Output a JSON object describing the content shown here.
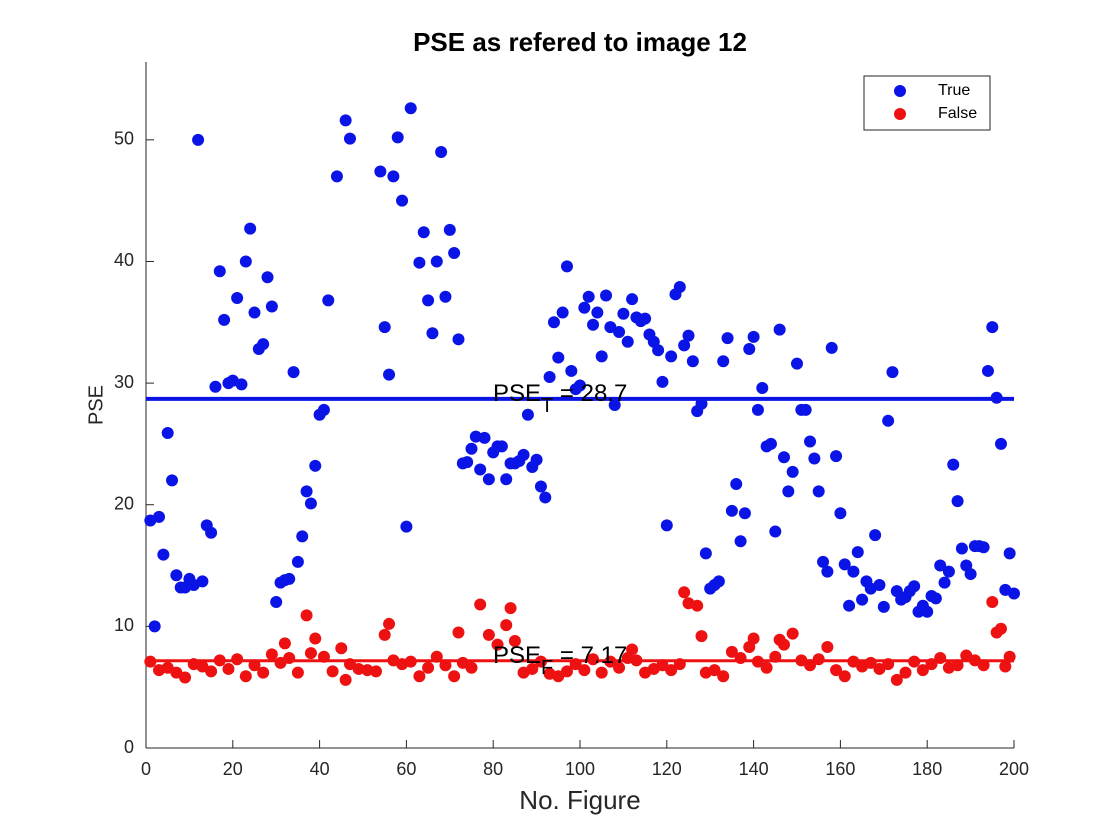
{
  "chart_data": {
    "type": "scatter",
    "title": "PSE as refered to image 12",
    "x_label": "No. Figure",
    "y_label": "PSE",
    "xlim": [
      0,
      200
    ],
    "xticks": [
      0,
      20,
      40,
      60,
      80,
      100,
      120,
      140,
      160,
      180,
      200
    ],
    "ylim": [
      0,
      56.4
    ],
    "yticks": [
      0,
      10,
      20,
      30,
      40,
      50
    ],
    "legend": "northeast",
    "series": [
      {
        "name": "True",
        "color": "#0a14e6",
        "x": [
          1,
          2,
          3,
          4,
          5,
          6,
          7,
          8,
          9,
          10,
          11,
          12,
          13,
          14,
          15,
          16,
          17,
          18,
          19,
          20,
          21,
          22,
          23,
          24,
          25,
          26,
          27,
          28,
          29,
          30,
          31,
          32,
          33,
          34,
          35,
          36,
          37,
          38,
          39,
          40,
          41,
          42,
          44,
          46,
          47,
          54,
          55,
          56,
          57,
          58,
          59,
          60,
          61,
          63,
          64,
          65,
          66,
          67,
          68,
          69,
          70,
          71,
          72,
          73,
          74,
          75,
          76,
          77,
          78,
          79,
          80,
          81,
          82,
          83,
          84,
          85,
          86,
          87,
          88,
          89,
          90,
          91,
          92,
          93,
          94,
          95,
          96,
          97,
          98,
          99,
          100,
          101,
          102,
          103,
          104,
          105,
          106,
          107,
          108,
          109,
          110,
          111,
          112,
          113,
          114,
          115,
          116,
          117,
          118,
          119,
          120,
          121,
          122,
          123,
          124,
          125,
          126,
          127,
          128,
          129,
          130,
          131,
          132,
          133,
          134,
          135,
          136,
          137,
          138,
          139,
          140,
          141,
          142,
          143,
          144,
          145,
          146,
          147,
          148,
          149,
          150,
          151,
          152,
          153,
          154,
          155,
          156,
          157,
          158,
          159,
          160,
          161,
          162,
          163,
          164,
          165,
          166,
          167,
          168,
          169,
          170,
          171,
          172,
          173,
          174,
          175,
          176,
          177,
          178,
          179,
          180,
          181,
          182,
          183,
          184,
          185,
          186,
          187,
          188,
          189,
          190,
          191,
          192,
          193,
          194,
          195,
          196,
          197,
          198,
          199,
          200
        ],
        "values": [
          18.7,
          10.0,
          19.0,
          15.9,
          25.9,
          22.0,
          14.2,
          13.2,
          13.2,
          13.9,
          13.4,
          50.0,
          13.7,
          18.3,
          17.7,
          29.7,
          39.2,
          35.2,
          30.0,
          30.2,
          37.0,
          29.9,
          40.0,
          42.7,
          35.8,
          32.8,
          33.2,
          38.7,
          36.3,
          12.0,
          13.6,
          13.8,
          13.9,
          30.9,
          15.3,
          17.4,
          21.1,
          20.1,
          23.2,
          27.4,
          27.8,
          36.8,
          47.0,
          51.6,
          50.1,
          47.4,
          34.6,
          30.7,
          47.0,
          50.2,
          45.0,
          18.2,
          52.6,
          39.9,
          42.4,
          36.8,
          34.1,
          40.0,
          49.0,
          37.1,
          42.6,
          40.7,
          33.6,
          23.4,
          23.5,
          24.6,
          25.6,
          22.9,
          25.5,
          22.1,
          24.3,
          24.8,
          24.8,
          22.1,
          23.4,
          23.4,
          23.6,
          24.1,
          27.4,
          23.1,
          23.7,
          21.5,
          20.6,
          30.5,
          35.0,
          32.1,
          35.8,
          39.6,
          31.0,
          29.5,
          29.8,
          36.2,
          37.1,
          34.8,
          35.8,
          32.2,
          37.2,
          34.6,
          28.2,
          34.2,
          35.7,
          33.4,
          36.9,
          35.4,
          35.1,
          35.3,
          34.0,
          33.4,
          32.7,
          30.1,
          18.3,
          32.2,
          37.3,
          37.9,
          33.1,
          33.9,
          31.8,
          27.7,
          28.3,
          16.0,
          13.1,
          13.4,
          13.7,
          31.8,
          33.7,
          19.5,
          21.7,
          17.0,
          19.3,
          32.8,
          33.8,
          27.8,
          29.6,
          24.8,
          25.0,
          17.8,
          34.4,
          23.9,
          21.1,
          22.7,
          31.6,
          27.8,
          27.8,
          25.2,
          23.8,
          21.1,
          15.3,
          14.5,
          32.9,
          24.0,
          19.3,
          15.1,
          11.7,
          14.5,
          16.1,
          12.2,
          13.7,
          13.1,
          17.5,
          13.4,
          11.6,
          26.9,
          30.9,
          12.9,
          12.2,
          12.4,
          12.9,
          13.3,
          11.2,
          11.7,
          11.2,
          12.5,
          12.3,
          15.0,
          13.6,
          14.5,
          23.3,
          20.3,
          16.4,
          15.0,
          14.3,
          16.6,
          16.6,
          16.5,
          31.0,
          34.6,
          28.8,
          25.0,
          13.0,
          16.0,
          12.7
        ]
      },
      {
        "name": "False",
        "color": "#ee1111",
        "x": [
          1,
          3,
          5,
          7,
          9,
          11,
          13,
          15,
          17,
          19,
          21,
          23,
          25,
          27,
          29,
          31,
          32,
          33,
          35,
          37,
          38,
          39,
          41,
          43,
          45,
          46,
          47,
          49,
          51,
          53,
          55,
          56,
          57,
          59,
          61,
          63,
          65,
          67,
          69,
          71,
          72,
          73,
          75,
          77,
          79,
          81,
          83,
          84,
          85,
          87,
          89,
          91,
          93,
          95,
          97,
          99,
          101,
          103,
          105,
          107,
          109,
          111,
          112,
          113,
          115,
          117,
          119,
          121,
          123,
          124,
          125,
          127,
          128,
          129,
          131,
          133,
          135,
          137,
          139,
          140,
          141,
          143,
          145,
          146,
          147,
          149,
          151,
          153,
          155,
          157,
          159,
          161,
          163,
          165,
          167,
          169,
          171,
          173,
          175,
          177,
          179,
          181,
          183,
          185,
          187,
          189,
          191,
          193,
          195,
          196,
          197,
          198,
          199
        ],
        "values": [
          7.1,
          6.4,
          6.6,
          6.2,
          5.8,
          6.9,
          6.7,
          6.3,
          7.2,
          6.5,
          7.3,
          5.9,
          6.8,
          6.2,
          7.7,
          7.0,
          8.6,
          7.4,
          6.2,
          10.9,
          7.8,
          9.0,
          7.5,
          6.3,
          8.2,
          5.6,
          6.9,
          6.5,
          6.4,
          6.3,
          9.3,
          10.2,
          7.2,
          6.9,
          7.1,
          5.9,
          6.6,
          7.5,
          6.8,
          5.9,
          9.5,
          7.0,
          6.6,
          11.8,
          9.3,
          8.5,
          10.1,
          11.5,
          8.8,
          6.2,
          6.5,
          7.1,
          6.1,
          5.9,
          6.3,
          6.9,
          6.4,
          7.3,
          6.2,
          7.1,
          6.6,
          7.4,
          8.1,
          7.2,
          6.2,
          6.5,
          6.8,
          6.4,
          6.9,
          12.8,
          11.9,
          11.7,
          9.2,
          6.2,
          6.4,
          5.9,
          7.9,
          7.4,
          8.3,
          9.0,
          7.1,
          6.6,
          7.5,
          8.9,
          8.5,
          9.4,
          7.2,
          6.8,
          7.3,
          8.3,
          6.4,
          5.9,
          7.1,
          6.7,
          7.0,
          6.5,
          6.9,
          5.6,
          6.2,
          7.1,
          6.4,
          6.9,
          7.4,
          6.6,
          6.8,
          7.6,
          7.2,
          6.8,
          12.0,
          9.5,
          9.8,
          6.7,
          7.5
        ]
      }
    ],
    "hlines": [
      {
        "value": 28.7,
        "color": "#0a14e6",
        "label_parts": [
          "PSE",
          "T",
          " = 28.7"
        ]
      },
      {
        "value": 7.17,
        "color": "#ee1111",
        "label_parts": [
          "PSE",
          "F",
          " = 7.17"
        ]
      }
    ]
  }
}
